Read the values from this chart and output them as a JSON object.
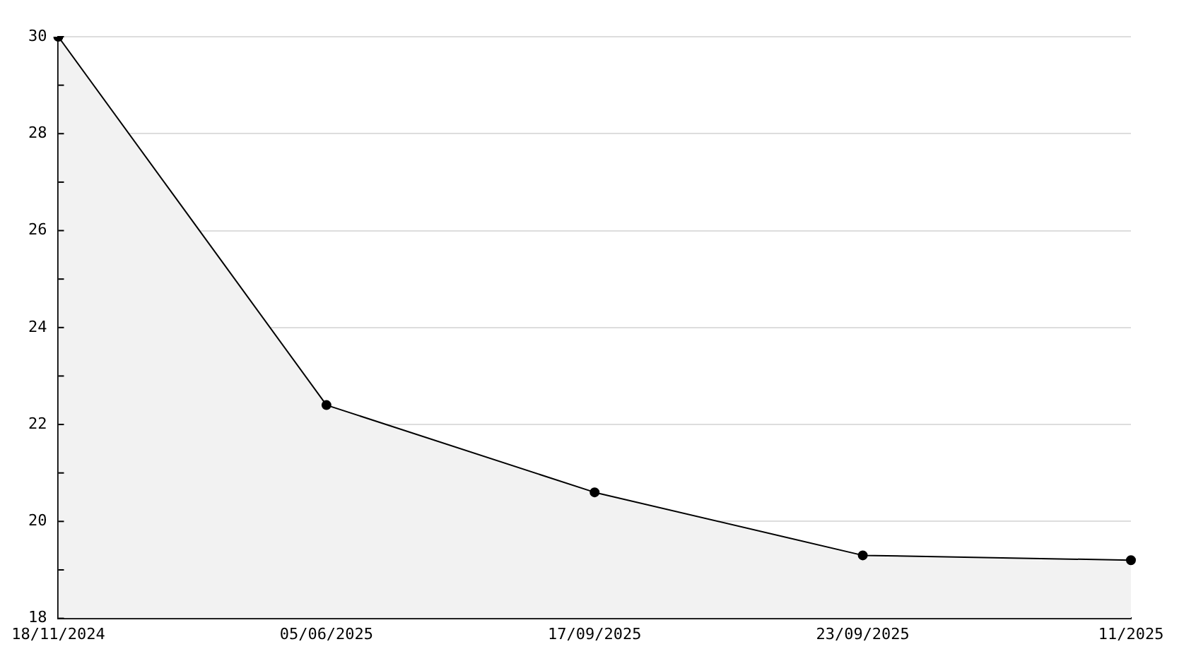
{
  "chart_data": {
    "type": "area",
    "categories": [
      "18/11/2024",
      "05/06/2025",
      "17/09/2025",
      "23/09/2025",
      "11/2025"
    ],
    "series": [
      {
        "color": "#000000",
        "values": [
          30,
          22.4,
          20.6,
          19.3,
          19.2
        ]
      }
    ],
    "ylim": [
      18,
      30
    ],
    "yticks": [
      18,
      {
        "value": 19,
        "label": null
      },
      20,
      {
        "value": 21,
        "label": null
      },
      22,
      {
        "value": 23,
        "label": null
      },
      24,
      {
        "value": 25,
        "label": null
      },
      26,
      {
        "value": 27,
        "label": null
      },
      28,
      {
        "value": 29,
        "label": null
      },
      30
    ],
    "grid": "y",
    "marker": "circle",
    "legend": false
  }
}
